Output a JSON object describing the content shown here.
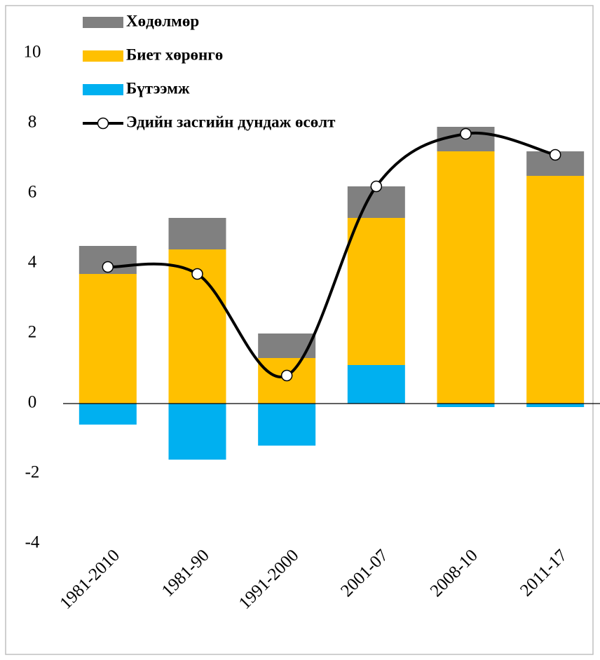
{
  "chart_data": {
    "type": "bar",
    "categories": [
      "1981-2010",
      "1981-90",
      "1991-2000",
      "2001-07",
      "2008-10",
      "2011-17"
    ],
    "series": [
      {
        "name": "Бүтээмж",
        "color": "#00b0f0",
        "values": [
          -0.6,
          -1.6,
          -1.2,
          1.1,
          -0.1,
          -0.1
        ]
      },
      {
        "name": "Биет хөрөнгө",
        "color": "#ffc000",
        "values": [
          3.7,
          4.4,
          1.3,
          4.2,
          7.2,
          6.5
        ]
      },
      {
        "name": "Хөдөлмөр",
        "color": "#808080",
        "values": [
          0.8,
          0.9,
          0.7,
          0.9,
          0.7,
          0.7
        ]
      },
      {
        "name": "Эдийн засгийн дундаж өсөлт",
        "type": "line",
        "color": "#000000",
        "values": [
          3.9,
          3.7,
          0.8,
          6.2,
          7.7,
          7.1
        ]
      }
    ],
    "stacked": true,
    "ylim": [
      -4,
      11
    ],
    "yticks": [
      -4,
      -2,
      0,
      2,
      4,
      6,
      8,
      10
    ],
    "grid": false
  }
}
